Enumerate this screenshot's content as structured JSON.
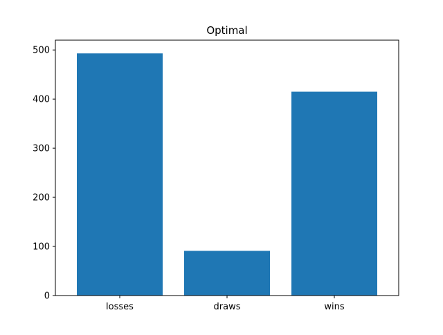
{
  "chart_data": {
    "type": "bar",
    "title": "Optimal",
    "xlabel": "",
    "ylabel": "",
    "categories": [
      "losses",
      "draws",
      "wins"
    ],
    "values": [
      493,
      91,
      415
    ],
    "ylim": [
      0,
      520
    ],
    "yticks": [
      0,
      100,
      200,
      300,
      400,
      500
    ],
    "grid": false,
    "legend": "none",
    "bar_color": "#1f77b4"
  }
}
